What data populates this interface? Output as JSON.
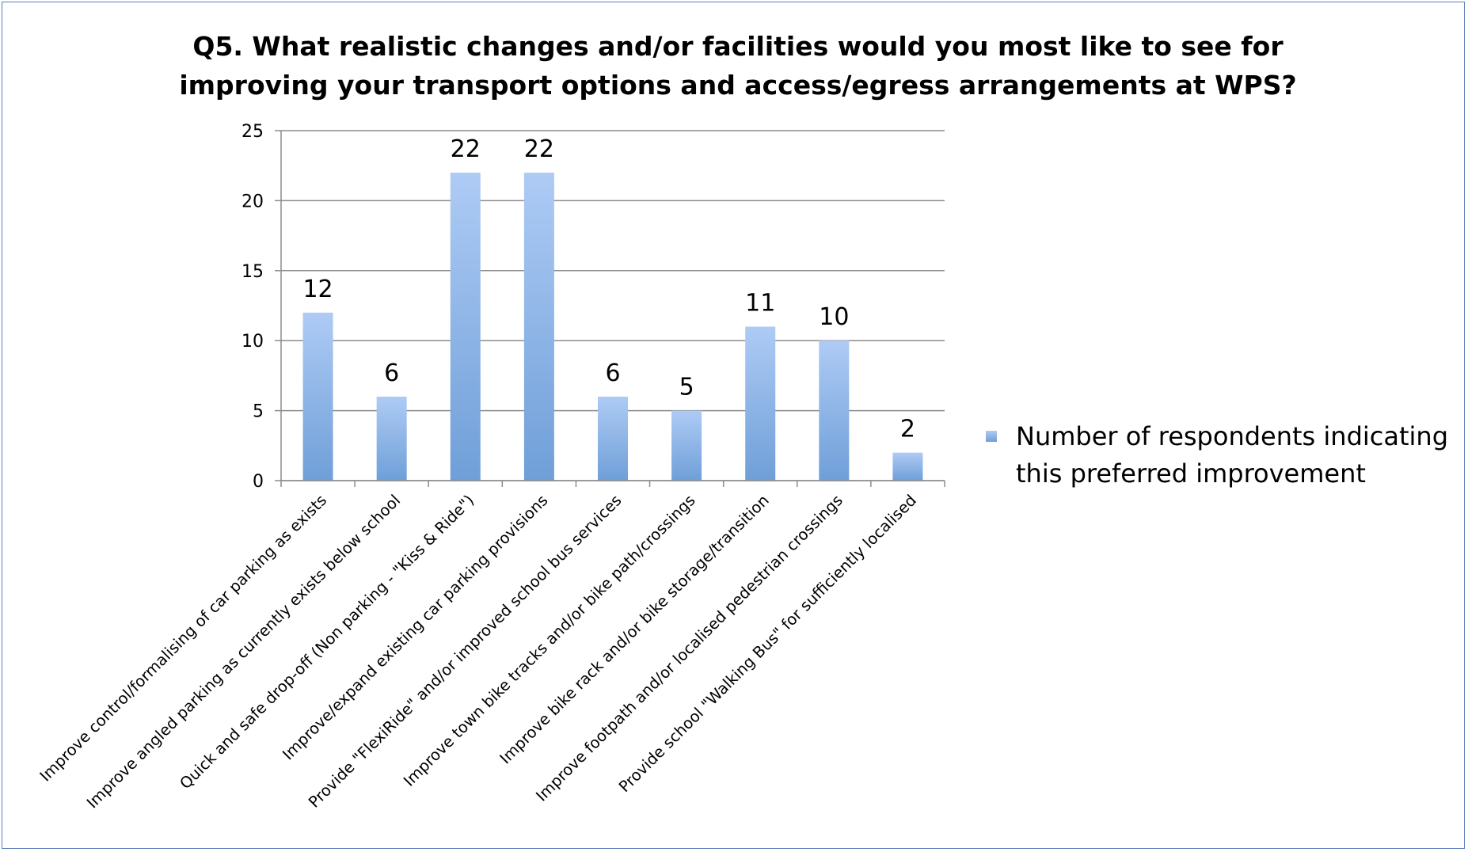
{
  "chart_data": {
    "type": "bar",
    "title": "Q5.  What realistic changes and/or facilities would you most like to see for improving your transport options and access/egress arrangements at WPS?",
    "title_lines": [
      "Q5.  What realistic changes and/or facilities would you most like to see for",
      "improving your transport options and access/egress arrangements at WPS?"
    ],
    "xlabel": "",
    "ylabel": "",
    "ylim": [
      0,
      25
    ],
    "yticks": [
      0,
      5,
      10,
      15,
      20,
      25
    ],
    "grid": true,
    "legend_position": "right",
    "categories": [
      "Improve control/formalising of car parking as exists",
      "Improve angled parking as currently exists below school",
      "Quick and safe drop-off (Non parking - \"Kiss & Ride\")",
      "Improve/expand existing car parking provisions",
      "Provide \"FlexiRide\" and/or improved school bus services",
      "Improve town bike tracks and/or bike path/crossings",
      "Improve bike rack and/or bike storage/transition",
      "Improve footpath and/or localised pedestrian crossings",
      "Provide school \"Walking Bus\" for sufficiently localised"
    ],
    "series": [
      {
        "name": "Number of respondents indicating this preferred improvement",
        "legend_lines": [
          "Number of respondents indicating",
          "this preferred improvement"
        ],
        "values": [
          12,
          6,
          22,
          22,
          6,
          5,
          11,
          10,
          2
        ],
        "color_top": "#aecbf5",
        "color_bottom": "#6f9fd8"
      }
    ],
    "colors": {
      "gridline": "#8c8c8c",
      "axis": "#8c8c8c",
      "frame": "#5b7cb8",
      "text": "#000000"
    }
  }
}
